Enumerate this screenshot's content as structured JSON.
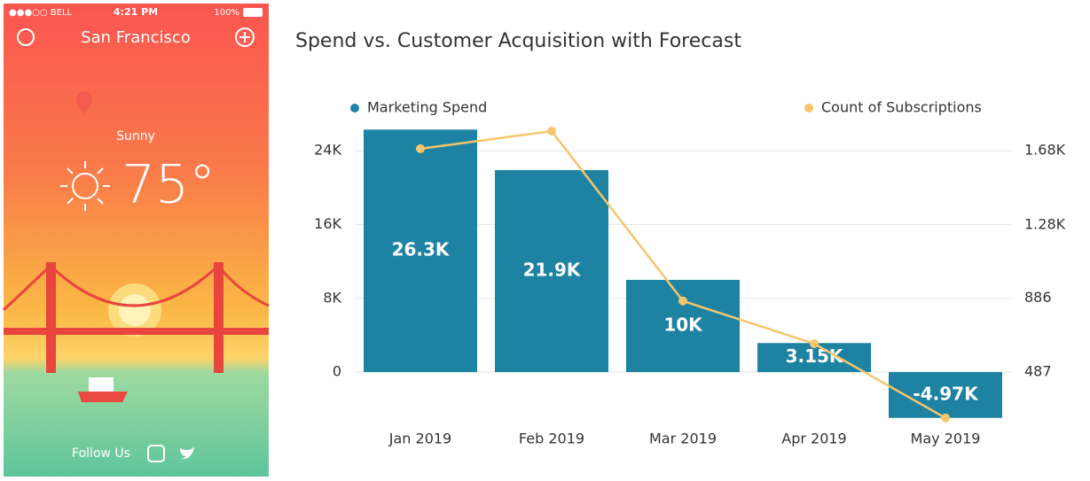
{
  "phone": {
    "carrier": "●●●○○ BELL",
    "time": "4:21 PM",
    "battery": "100%",
    "city": "San Francisco",
    "condition": "Sunny",
    "temperature": "75°",
    "follow": "Follow Us"
  },
  "chart_data": {
    "type": "bar",
    "title": "Spend vs. Customer Acquisition with Forecast",
    "categories": [
      "Jan 2019",
      "Feb 2019",
      "Mar 2019",
      "Apr 2019",
      "May 2019"
    ],
    "series": [
      {
        "name": "Marketing Spend",
        "type": "bar",
        "color": "#1e83a3",
        "values": [
          26300,
          21900,
          10000,
          3150,
          -4970
        ],
        "value_labels": [
          "26.3K",
          "21.9K",
          "10K",
          "3.15K",
          "-4.97K"
        ]
      },
      {
        "name": "Count of Subscriptions",
        "type": "line",
        "axis": "y2",
        "color": "#f5c66b",
        "values": [
          1690,
          1785,
          870,
          640,
          240
        ]
      }
    ],
    "ylim": [
      -6000,
      27000
    ],
    "yticks": [
      0,
      {
        "value": 8000,
        "label": "8K"
      },
      {
        "value": 16000,
        "label": "16K"
      },
      {
        "value": 24000,
        "label": "24K"
      }
    ],
    "y2lim": [
      189,
      1828
    ],
    "y2ticks": [
      487,
      886,
      {
        "value": 1280,
        "label": "1.28K"
      },
      {
        "value": 1680,
        "label": "1.68K"
      }
    ],
    "grid": true,
    "legend": "top"
  }
}
